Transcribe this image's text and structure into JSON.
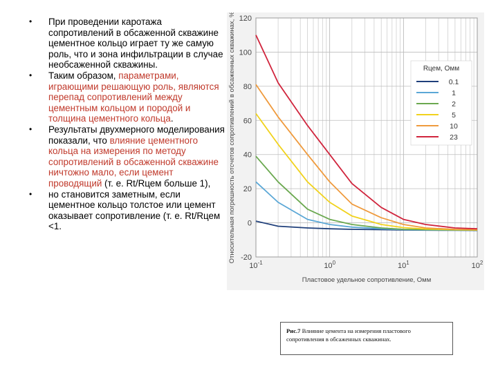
{
  "bullets": [
    {
      "parts": [
        {
          "text": "При проведении каротажа сопротивлений в обсаженной скважине цементное кольцо играет ту же самую роль, что и зона инфильтрации в случае необсаженной скважины.",
          "hl": false
        }
      ]
    },
    {
      "parts": [
        {
          "text": "Таким образом, ",
          "hl": false
        },
        {
          "text": "параметрами, играющими решающую роль, являются перепад сопротивлений между цементным кольцом и породой и толщина цементного кольца",
          "hl": true
        },
        {
          "text": ".",
          "hl": false
        }
      ]
    },
    {
      "parts": [
        {
          "text": "Результаты двухмерного моделирования показали, что ",
          "hl": false
        },
        {
          "text": "влияние цементного кольца на измерения по методу сопротивлений в обсаженной скважине ничтожно мало, если цемент проводящий",
          "hl": true
        },
        {
          "text": " (т. е. Rt/Rцем больше 1),",
          "hl": false
        }
      ]
    },
    {
      "parts": [
        {
          "text": "но становится заметным, если цементное кольцо толстое или цемент оказывает сопротивление (т. е. Rt/Rцем <1.",
          "hl": false
        }
      ]
    }
  ],
  "chart_data": {
    "type": "line",
    "ylabel": "Относительная погрешность отсчетов сопротивлений в обсаженных скважинах, %",
    "xlabel": "Пластовое удельное сопротивление, Омм",
    "x_scale": "log",
    "xlim": [
      0.1,
      100
    ],
    "ylim": [
      -20,
      120
    ],
    "y_ticks": [
      -20,
      0,
      20,
      40,
      60,
      80,
      100,
      120
    ],
    "x_tick_labels": [
      "10^-1",
      "10^0",
      "10^1",
      "10^2"
    ],
    "x_ticks": [
      0.1,
      1,
      10,
      100
    ],
    "grid": true,
    "legend_title": "Rцем, Омм",
    "legend_position": "top-right",
    "x": [
      0.1,
      0.2,
      0.5,
      1,
      2,
      5,
      10,
      20,
      50,
      100
    ],
    "series": [
      {
        "name": "0.1",
        "color": "#1f3f7a",
        "values": [
          1,
          -2,
          -3,
          -3.5,
          -3.8,
          -4,
          -4.2,
          -4.3,
          -4.4,
          -4.5
        ]
      },
      {
        "name": "1",
        "color": "#5aa7d6",
        "values": [
          24,
          12,
          2,
          -1,
          -2.5,
          -3.5,
          -4,
          -4.2,
          -4.3,
          -4.4
        ]
      },
      {
        "name": "2",
        "color": "#6aa84f",
        "values": [
          39,
          24,
          8,
          2,
          -1,
          -3,
          -3.8,
          -4,
          -4.2,
          -4.3
        ]
      },
      {
        "name": "5",
        "color": "#f1d21c",
        "values": [
          64,
          46,
          24,
          12,
          4,
          -1,
          -2.8,
          -3.6,
          -4,
          -4.2
        ]
      },
      {
        "name": "10",
        "color": "#ef9a3c",
        "values": [
          81,
          62,
          40,
          24,
          11,
          3,
          -1,
          -3,
          -3.8,
          -4
        ]
      },
      {
        "name": "23",
        "color": "#d0243c",
        "values": [
          110,
          82,
          57,
          40,
          23,
          9,
          2,
          -1,
          -3,
          -3.5
        ]
      }
    ]
  },
  "caption": {
    "label": "Рис.7",
    "text": " Влияние цемента на измерения пластового сопротивления в обсаженных скважинах."
  }
}
